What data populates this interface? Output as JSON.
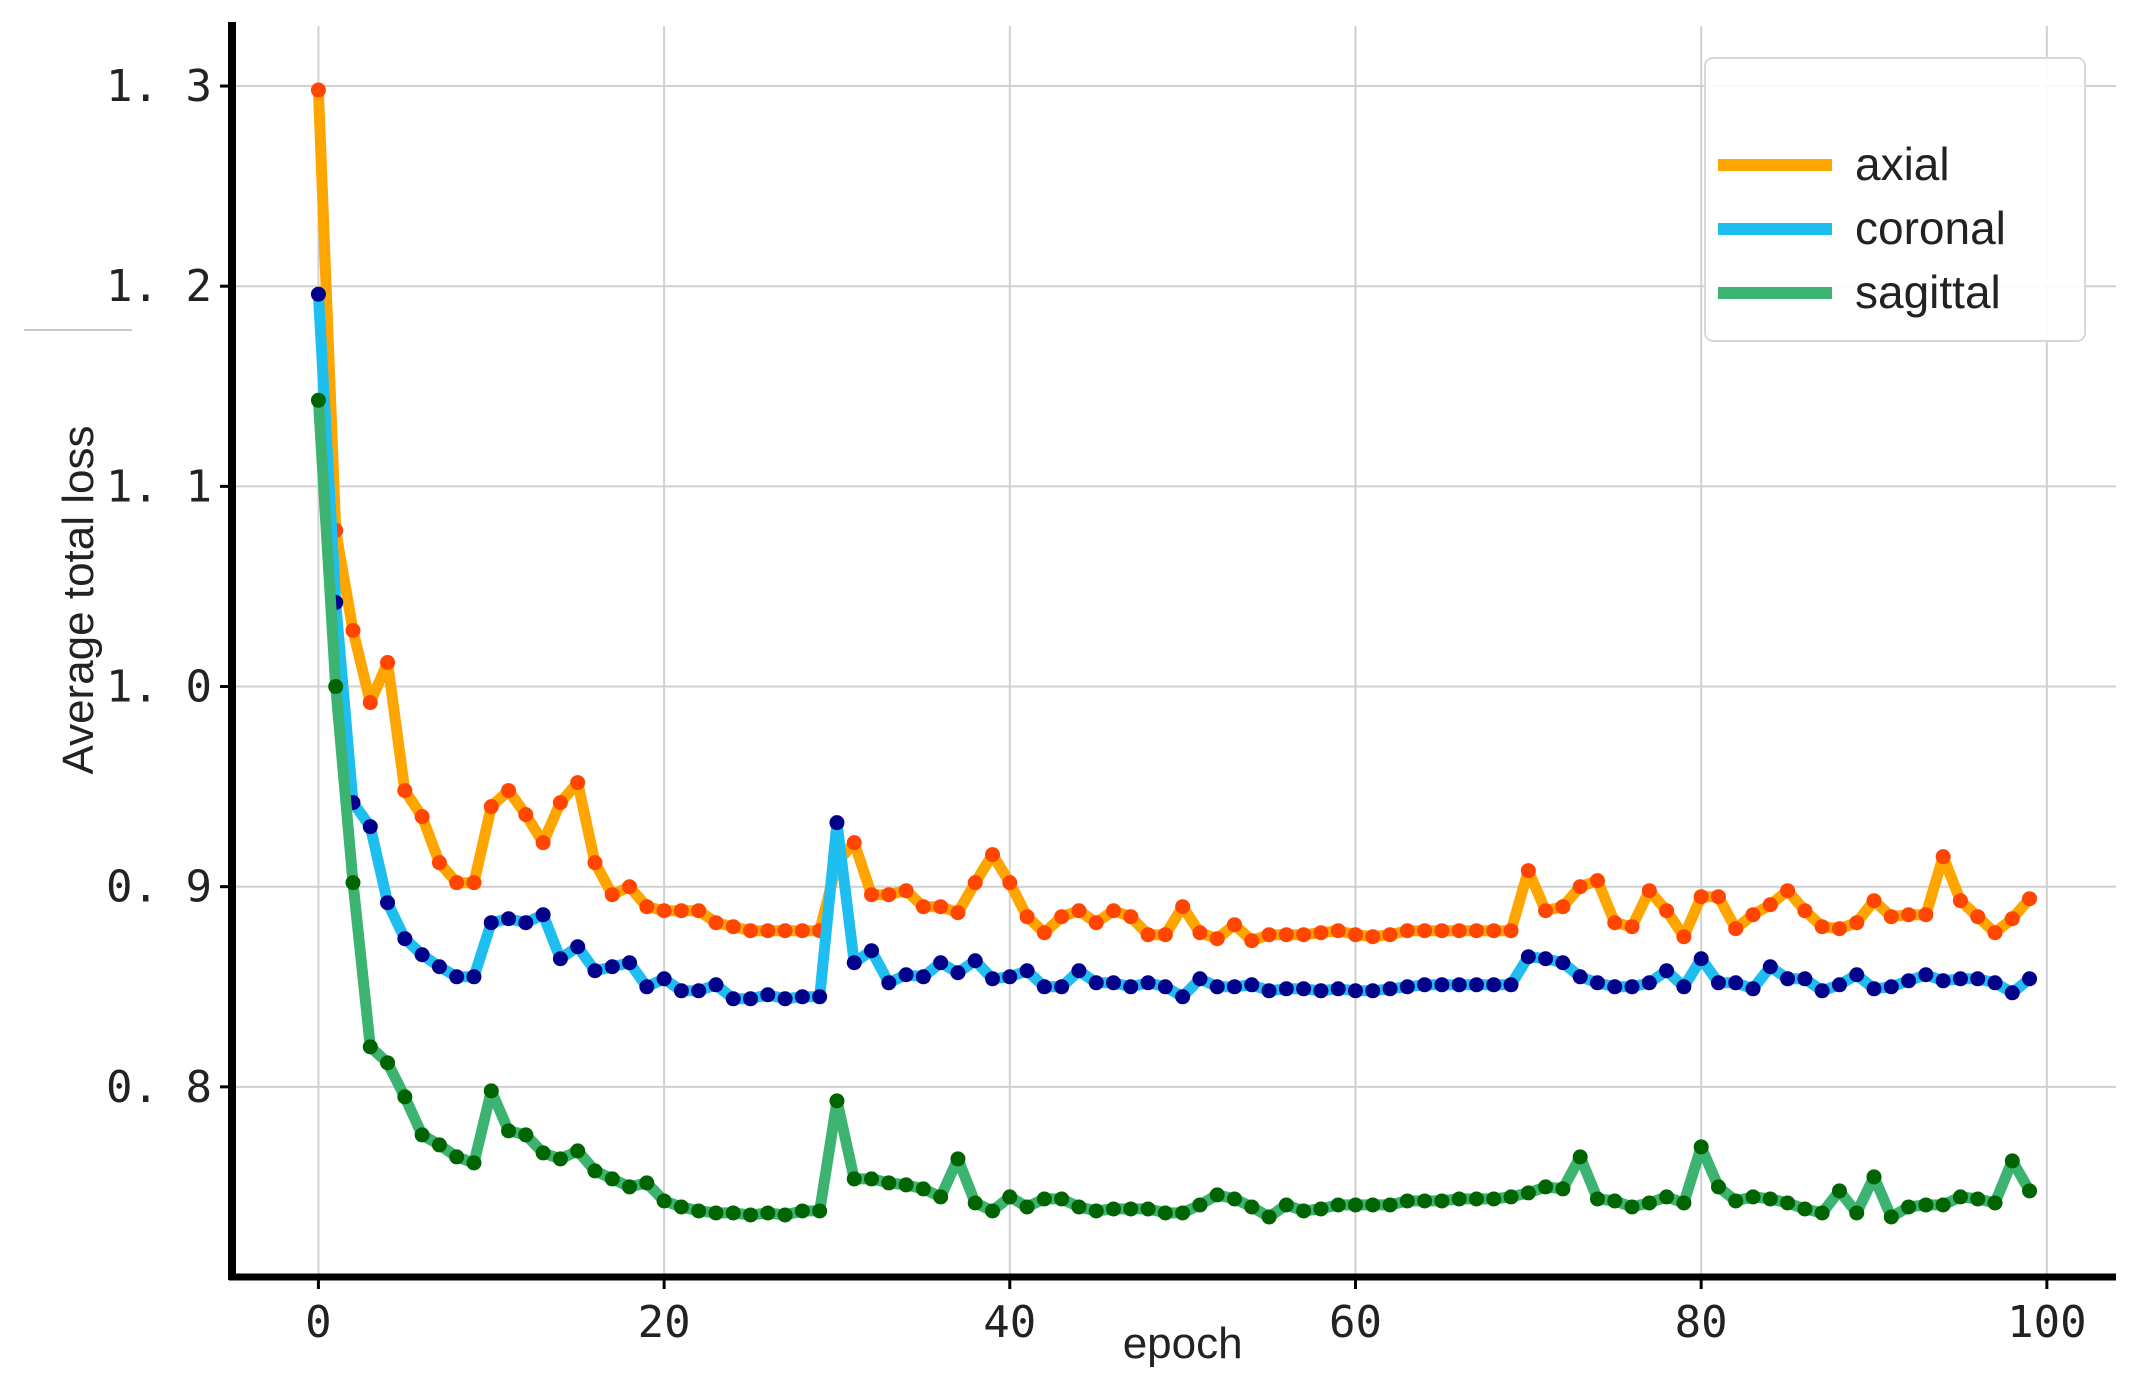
{
  "chart_data": {
    "type": "line",
    "xlabel": "epoch",
    "ylabel": "Average total loss",
    "xlim": [
      -5,
      104
    ],
    "ylim": [
      0.705,
      1.33
    ],
    "xticks": [
      0,
      20,
      40,
      60,
      80,
      100
    ],
    "xtick_labels": [
      "0",
      "20",
      "40",
      "60",
      "80",
      "100"
    ],
    "yticks": [
      0.8,
      0.9,
      1.0,
      1.1,
      1.2,
      1.3
    ],
    "ytick_labels": [
      "0. 8",
      "0. 9",
      "1. 0",
      "1. 1",
      "1. 2",
      "1. 3"
    ],
    "grid": true,
    "legend_position": "top-right",
    "series": [
      {
        "name": "axial",
        "color": "#ffa500",
        "marker_color": "#ff4500",
        "values": [
          1.298,
          1.078,
          1.028,
          0.992,
          1.012,
          0.948,
          0.935,
          0.912,
          0.902,
          0.902,
          0.94,
          0.948,
          0.936,
          0.922,
          0.942,
          0.952,
          0.912,
          0.896,
          0.9,
          0.89,
          0.888,
          0.888,
          0.888,
          0.882,
          0.88,
          0.878,
          0.878,
          0.878,
          0.878,
          0.878,
          0.912,
          0.922,
          0.896,
          0.896,
          0.898,
          0.89,
          0.89,
          0.887,
          0.902,
          0.916,
          0.902,
          0.885,
          0.877,
          0.885,
          0.888,
          0.882,
          0.888,
          0.885,
          0.876,
          0.876,
          0.89,
          0.877,
          0.874,
          0.881,
          0.873,
          0.876,
          0.876,
          0.876,
          0.877,
          0.878,
          0.876,
          0.875,
          0.876,
          0.878,
          0.878,
          0.878,
          0.878,
          0.878,
          0.878,
          0.878,
          0.908,
          0.888,
          0.89,
          0.9,
          0.903,
          0.882,
          0.88,
          0.898,
          0.888,
          0.875,
          0.895,
          0.895,
          0.879,
          0.886,
          0.891,
          0.898,
          0.888,
          0.88,
          0.879,
          0.882,
          0.893,
          0.885,
          0.886,
          0.886,
          0.915,
          0.893,
          0.885,
          0.877,
          0.884,
          0.894
        ]
      },
      {
        "name": "coronal",
        "color": "#1ebef0",
        "marker_color": "#00008b",
        "values": [
          1.196,
          1.042,
          0.942,
          0.93,
          0.892,
          0.874,
          0.866,
          0.86,
          0.855,
          0.855,
          0.882,
          0.884,
          0.882,
          0.886,
          0.864,
          0.87,
          0.858,
          0.86,
          0.862,
          0.85,
          0.854,
          0.848,
          0.848,
          0.851,
          0.844,
          0.844,
          0.846,
          0.844,
          0.845,
          0.845,
          0.932,
          0.862,
          0.868,
          0.852,
          0.856,
          0.855,
          0.862,
          0.857,
          0.863,
          0.854,
          0.855,
          0.858,
          0.85,
          0.85,
          0.858,
          0.852,
          0.852,
          0.85,
          0.852,
          0.85,
          0.845,
          0.854,
          0.85,
          0.85,
          0.851,
          0.848,
          0.849,
          0.849,
          0.848,
          0.849,
          0.848,
          0.848,
          0.849,
          0.85,
          0.851,
          0.851,
          0.851,
          0.851,
          0.851,
          0.851,
          0.865,
          0.864,
          0.862,
          0.855,
          0.852,
          0.85,
          0.85,
          0.852,
          0.858,
          0.85,
          0.864,
          0.852,
          0.852,
          0.849,
          0.86,
          0.854,
          0.854,
          0.848,
          0.851,
          0.856,
          0.849,
          0.85,
          0.853,
          0.856,
          0.853,
          0.854,
          0.854,
          0.852,
          0.847,
          0.854
        ]
      },
      {
        "name": "sagittal",
        "color": "#3cb371",
        "marker_color": "#006400",
        "values": [
          1.143,
          1.0,
          0.902,
          0.82,
          0.812,
          0.795,
          0.776,
          0.771,
          0.765,
          0.762,
          0.798,
          0.778,
          0.776,
          0.767,
          0.764,
          0.768,
          0.758,
          0.754,
          0.75,
          0.752,
          0.743,
          0.74,
          0.738,
          0.737,
          0.737,
          0.736,
          0.737,
          0.736,
          0.738,
          0.738,
          0.793,
          0.754,
          0.754,
          0.752,
          0.751,
          0.749,
          0.745,
          0.764,
          0.742,
          0.738,
          0.745,
          0.74,
          0.744,
          0.744,
          0.74,
          0.738,
          0.739,
          0.739,
          0.739,
          0.737,
          0.737,
          0.741,
          0.746,
          0.744,
          0.74,
          0.735,
          0.741,
          0.738,
          0.739,
          0.741,
          0.741,
          0.741,
          0.741,
          0.743,
          0.743,
          0.743,
          0.744,
          0.744,
          0.744,
          0.745,
          0.747,
          0.75,
          0.749,
          0.765,
          0.744,
          0.743,
          0.74,
          0.742,
          0.745,
          0.742,
          0.77,
          0.75,
          0.743,
          0.745,
          0.744,
          0.742,
          0.739,
          0.737,
          0.748,
          0.737,
          0.755,
          0.735,
          0.74,
          0.741,
          0.741,
          0.745,
          0.744,
          0.742,
          0.763,
          0.748
        ]
      }
    ]
  }
}
